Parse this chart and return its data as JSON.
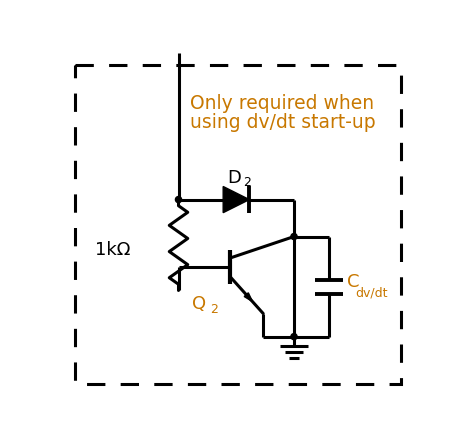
{
  "title_line1": "Only required when",
  "title_line2": "using dv/dt start-up",
  "title_color": "#c87800",
  "label_1kohm": "1kΩ",
  "label_D2": "D",
  "label_D2_sub": "2",
  "label_Q2": "Q",
  "label_Q2_sub": "2",
  "label_C": "C",
  "label_C_sub": "dv/dt",
  "line_color": "#000000",
  "bg_color": "#ffffff",
  "figsize": [
    4.64,
    4.44
  ],
  "dpi": 100
}
